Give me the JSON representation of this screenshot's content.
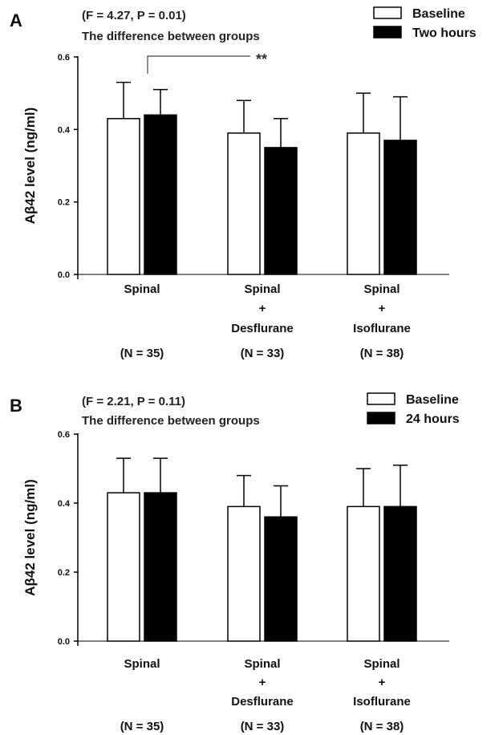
{
  "panels": [
    {
      "letter": "A",
      "stats_line": "(F = 4.27, P = 0.01)",
      "stats_subtitle": "The difference between groups",
      "significance": {
        "from_category": 0,
        "to_category": 1,
        "label": "**"
      },
      "chart": {
        "type": "bar",
        "categories": [
          {
            "lines": [
              "Spinal"
            ],
            "n": "(N = 35)"
          },
          {
            "lines": [
              "Spinal",
              "+",
              "Desflurane"
            ],
            "n": "(N = 33)"
          },
          {
            "lines": [
              "Spinal",
              "+",
              "Isoflurane"
            ],
            "n": "(N = 38)"
          }
        ],
        "series": [
          {
            "name": "Baseline",
            "fill": "#ffffff",
            "values": [
              0.43,
              0.39,
              0.39
            ],
            "errors": [
              0.1,
              0.09,
              0.11
            ]
          },
          {
            "name": "Two hours",
            "fill": "#000000",
            "values": [
              0.44,
              0.35,
              0.37
            ],
            "errors": [
              0.07,
              0.08,
              0.12
            ]
          }
        ],
        "ylabel": "Aβ42 level (ng/ml)",
        "ylim": [
          0,
          0.6
        ],
        "yticks": [
          "0.0",
          "0.2",
          "0.4",
          "0.6"
        ],
        "legend_position": "top-right",
        "grid": false
      }
    },
    {
      "letter": "B",
      "stats_line": "(F = 2.21, P = 0.11)",
      "stats_subtitle": "The difference between groups",
      "significance": null,
      "chart": {
        "type": "bar",
        "categories": [
          {
            "lines": [
              "Spinal"
            ],
            "n": "(N = 35)"
          },
          {
            "lines": [
              "Spinal",
              "+",
              "Desflurane"
            ],
            "n": "(N = 33)"
          },
          {
            "lines": [
              "Spinal",
              "+",
              "Isoflurane"
            ],
            "n": "(N = 38)"
          }
        ],
        "series": [
          {
            "name": "Baseline",
            "fill": "#ffffff",
            "values": [
              0.43,
              0.39,
              0.39
            ],
            "errors": [
              0.1,
              0.09,
              0.11
            ]
          },
          {
            "name": "24 hours",
            "fill": "#000000",
            "values": [
              0.43,
              0.36,
              0.39
            ],
            "errors": [
              0.1,
              0.09,
              0.12
            ]
          }
        ],
        "ylabel": "Aβ42 level (ng/ml)",
        "ylim": [
          0,
          0.6
        ],
        "yticks": [
          "0.0",
          "0.2",
          "0.4",
          "0.6"
        ],
        "legend_position": "top-right",
        "grid": false
      }
    }
  ]
}
